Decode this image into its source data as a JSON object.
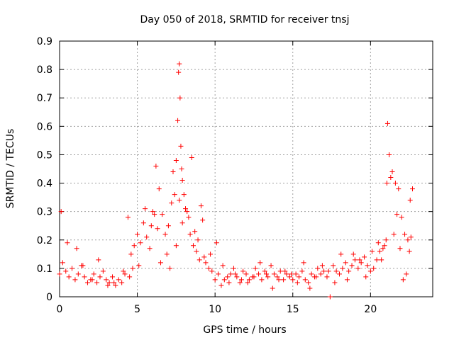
{
  "chart_data": {
    "type": "scatter",
    "title": "Day 050 of 2018, SRMTID for receiver tnsj",
    "xlabel": "GPS time / hours",
    "ylabel": "SRMTID / TECUs",
    "xlim": [
      0,
      24
    ],
    "ylim": [
      0,
      0.9
    ],
    "xticks": [
      0,
      5,
      10,
      15,
      20
    ],
    "xtick_labels": [
      "0",
      "5",
      "10",
      "15",
      "20"
    ],
    "yticks": [
      0,
      0.1,
      0.2,
      0.3,
      0.4,
      0.5,
      0.6,
      0.7,
      0.8,
      0.9
    ],
    "ytick_labels": [
      "0",
      "0.1",
      "0.2",
      "0.3",
      "0.4",
      "0.5",
      "0.6",
      "0.7",
      "0.8",
      "0.9"
    ],
    "grid": true,
    "marker": "+",
    "color": "#ff0000",
    "series": [
      {
        "name": "SRMTID",
        "x": [
          0.0,
          0.2,
          0.4,
          0.6,
          0.8,
          1.0,
          1.2,
          1.4,
          1.6,
          1.8,
          2.0,
          2.2,
          2.4,
          2.6,
          2.8,
          3.0,
          3.2,
          3.4,
          3.6,
          3.8,
          4.0,
          4.2,
          4.4,
          4.6,
          4.8,
          5.0,
          5.2,
          5.4,
          5.6,
          5.8,
          6.0,
          6.2,
          6.4,
          6.6,
          6.8,
          7.0,
          7.2,
          7.4,
          7.5,
          7.6,
          7.65,
          7.7,
          7.75,
          7.8,
          7.85,
          7.9,
          8.0,
          8.2,
          8.4,
          8.6,
          8.8,
          9.0,
          9.2,
          9.4,
          9.6,
          9.8,
          10.0,
          10.2,
          10.4,
          10.6,
          10.8,
          11.0,
          11.2,
          11.4,
          11.6,
          11.8,
          12.0,
          12.2,
          12.4,
          12.6,
          12.8,
          13.0,
          13.2,
          13.4,
          13.6,
          13.8,
          14.0,
          14.2,
          14.4,
          14.6,
          14.8,
          15.0,
          15.2,
          15.4,
          15.6,
          15.8,
          16.0,
          16.2,
          16.4,
          16.6,
          16.8,
          17.0,
          17.2,
          17.4,
          17.6,
          17.8,
          18.0,
          18.2,
          18.4,
          18.6,
          18.8,
          19.0,
          19.2,
          19.4,
          19.6,
          19.8,
          20.0,
          20.2,
          20.4,
          20.6,
          20.8,
          21.0,
          21.05,
          21.1,
          21.2,
          21.3,
          21.4,
          21.6,
          21.8,
          22.0,
          22.2,
          22.4,
          22.5,
          22.6,
          22.7,
          0.1,
          0.5,
          1.1,
          1.5,
          2.1,
          2.5,
          3.1,
          3.5,
          4.1,
          4.5,
          4.7,
          5.1,
          5.5,
          5.9,
          6.1,
          6.3,
          6.5,
          6.9,
          7.1,
          7.3,
          7.5,
          7.7,
          7.9,
          8.1,
          8.3,
          8.5,
          8.7,
          8.9,
          9.1,
          9.3,
          9.7,
          10.1,
          10.5,
          10.9,
          11.3,
          11.7,
          12.1,
          12.5,
          12.9,
          13.3,
          13.7,
          14.1,
          14.5,
          14.9,
          15.3,
          15.7,
          16.1,
          16.5,
          16.9,
          17.3,
          17.7,
          18.1,
          18.5,
          18.9,
          19.3,
          19.7,
          20.1,
          20.5,
          20.7,
          20.9,
          21.5,
          21.7,
          21.9,
          22.1,
          22.3,
          22.55
        ],
        "y": [
          0.08,
          0.12,
          0.09,
          0.07,
          0.1,
          0.06,
          0.08,
          0.11,
          0.07,
          0.05,
          0.06,
          0.08,
          0.05,
          0.07,
          0.09,
          0.06,
          0.05,
          0.07,
          0.04,
          0.06,
          0.05,
          0.08,
          0.28,
          0.15,
          0.18,
          0.22,
          0.19,
          0.26,
          0.21,
          0.17,
          0.3,
          0.46,
          0.38,
          0.29,
          0.22,
          0.25,
          0.33,
          0.36,
          0.48,
          0.62,
          0.79,
          0.82,
          0.7,
          0.53,
          0.45,
          0.41,
          0.36,
          0.3,
          0.22,
          0.18,
          0.16,
          0.13,
          0.27,
          0.12,
          0.1,
          0.09,
          0.06,
          0.08,
          0.04,
          0.06,
          0.07,
          0.08,
          0.1,
          0.07,
          0.05,
          0.09,
          0.08,
          0.06,
          0.07,
          0.1,
          0.08,
          0.06,
          0.09,
          0.07,
          0.11,
          0.08,
          0.07,
          0.09,
          0.06,
          0.08,
          0.07,
          0.06,
          0.08,
          0.07,
          0.09,
          0.06,
          0.05,
          0.08,
          0.07,
          0.1,
          0.08,
          0.09,
          0.07,
          0.0,
          0.11,
          0.09,
          0.08,
          0.1,
          0.12,
          0.09,
          0.11,
          0.13,
          0.1,
          0.12,
          0.14,
          0.11,
          0.09,
          0.1,
          0.13,
          0.16,
          0.17,
          0.2,
          0.4,
          0.61,
          0.5,
          0.42,
          0.44,
          0.4,
          0.38,
          0.28,
          0.22,
          0.2,
          0.16,
          0.21,
          0.38,
          0.3,
          0.19,
          0.17,
          0.11,
          0.06,
          0.13,
          0.04,
          0.05,
          0.09,
          0.07,
          0.1,
          0.11,
          0.31,
          0.25,
          0.29,
          0.24,
          0.12,
          0.15,
          0.1,
          0.44,
          0.18,
          0.34,
          0.26,
          0.31,
          0.28,
          0.49,
          0.23,
          0.2,
          0.32,
          0.14,
          0.15,
          0.19,
          0.11,
          0.05,
          0.08,
          0.06,
          0.05,
          0.07,
          0.12,
          0.08,
          0.03,
          0.06,
          0.09,
          0.08,
          0.05,
          0.12,
          0.03,
          0.07,
          0.11,
          0.09,
          0.05,
          0.15,
          0.06,
          0.15,
          0.13,
          0.07,
          0.16,
          0.19,
          0.13,
          0.18,
          0.22,
          0.29,
          0.17,
          0.06,
          0.08,
          0.34
        ]
      }
    ]
  }
}
